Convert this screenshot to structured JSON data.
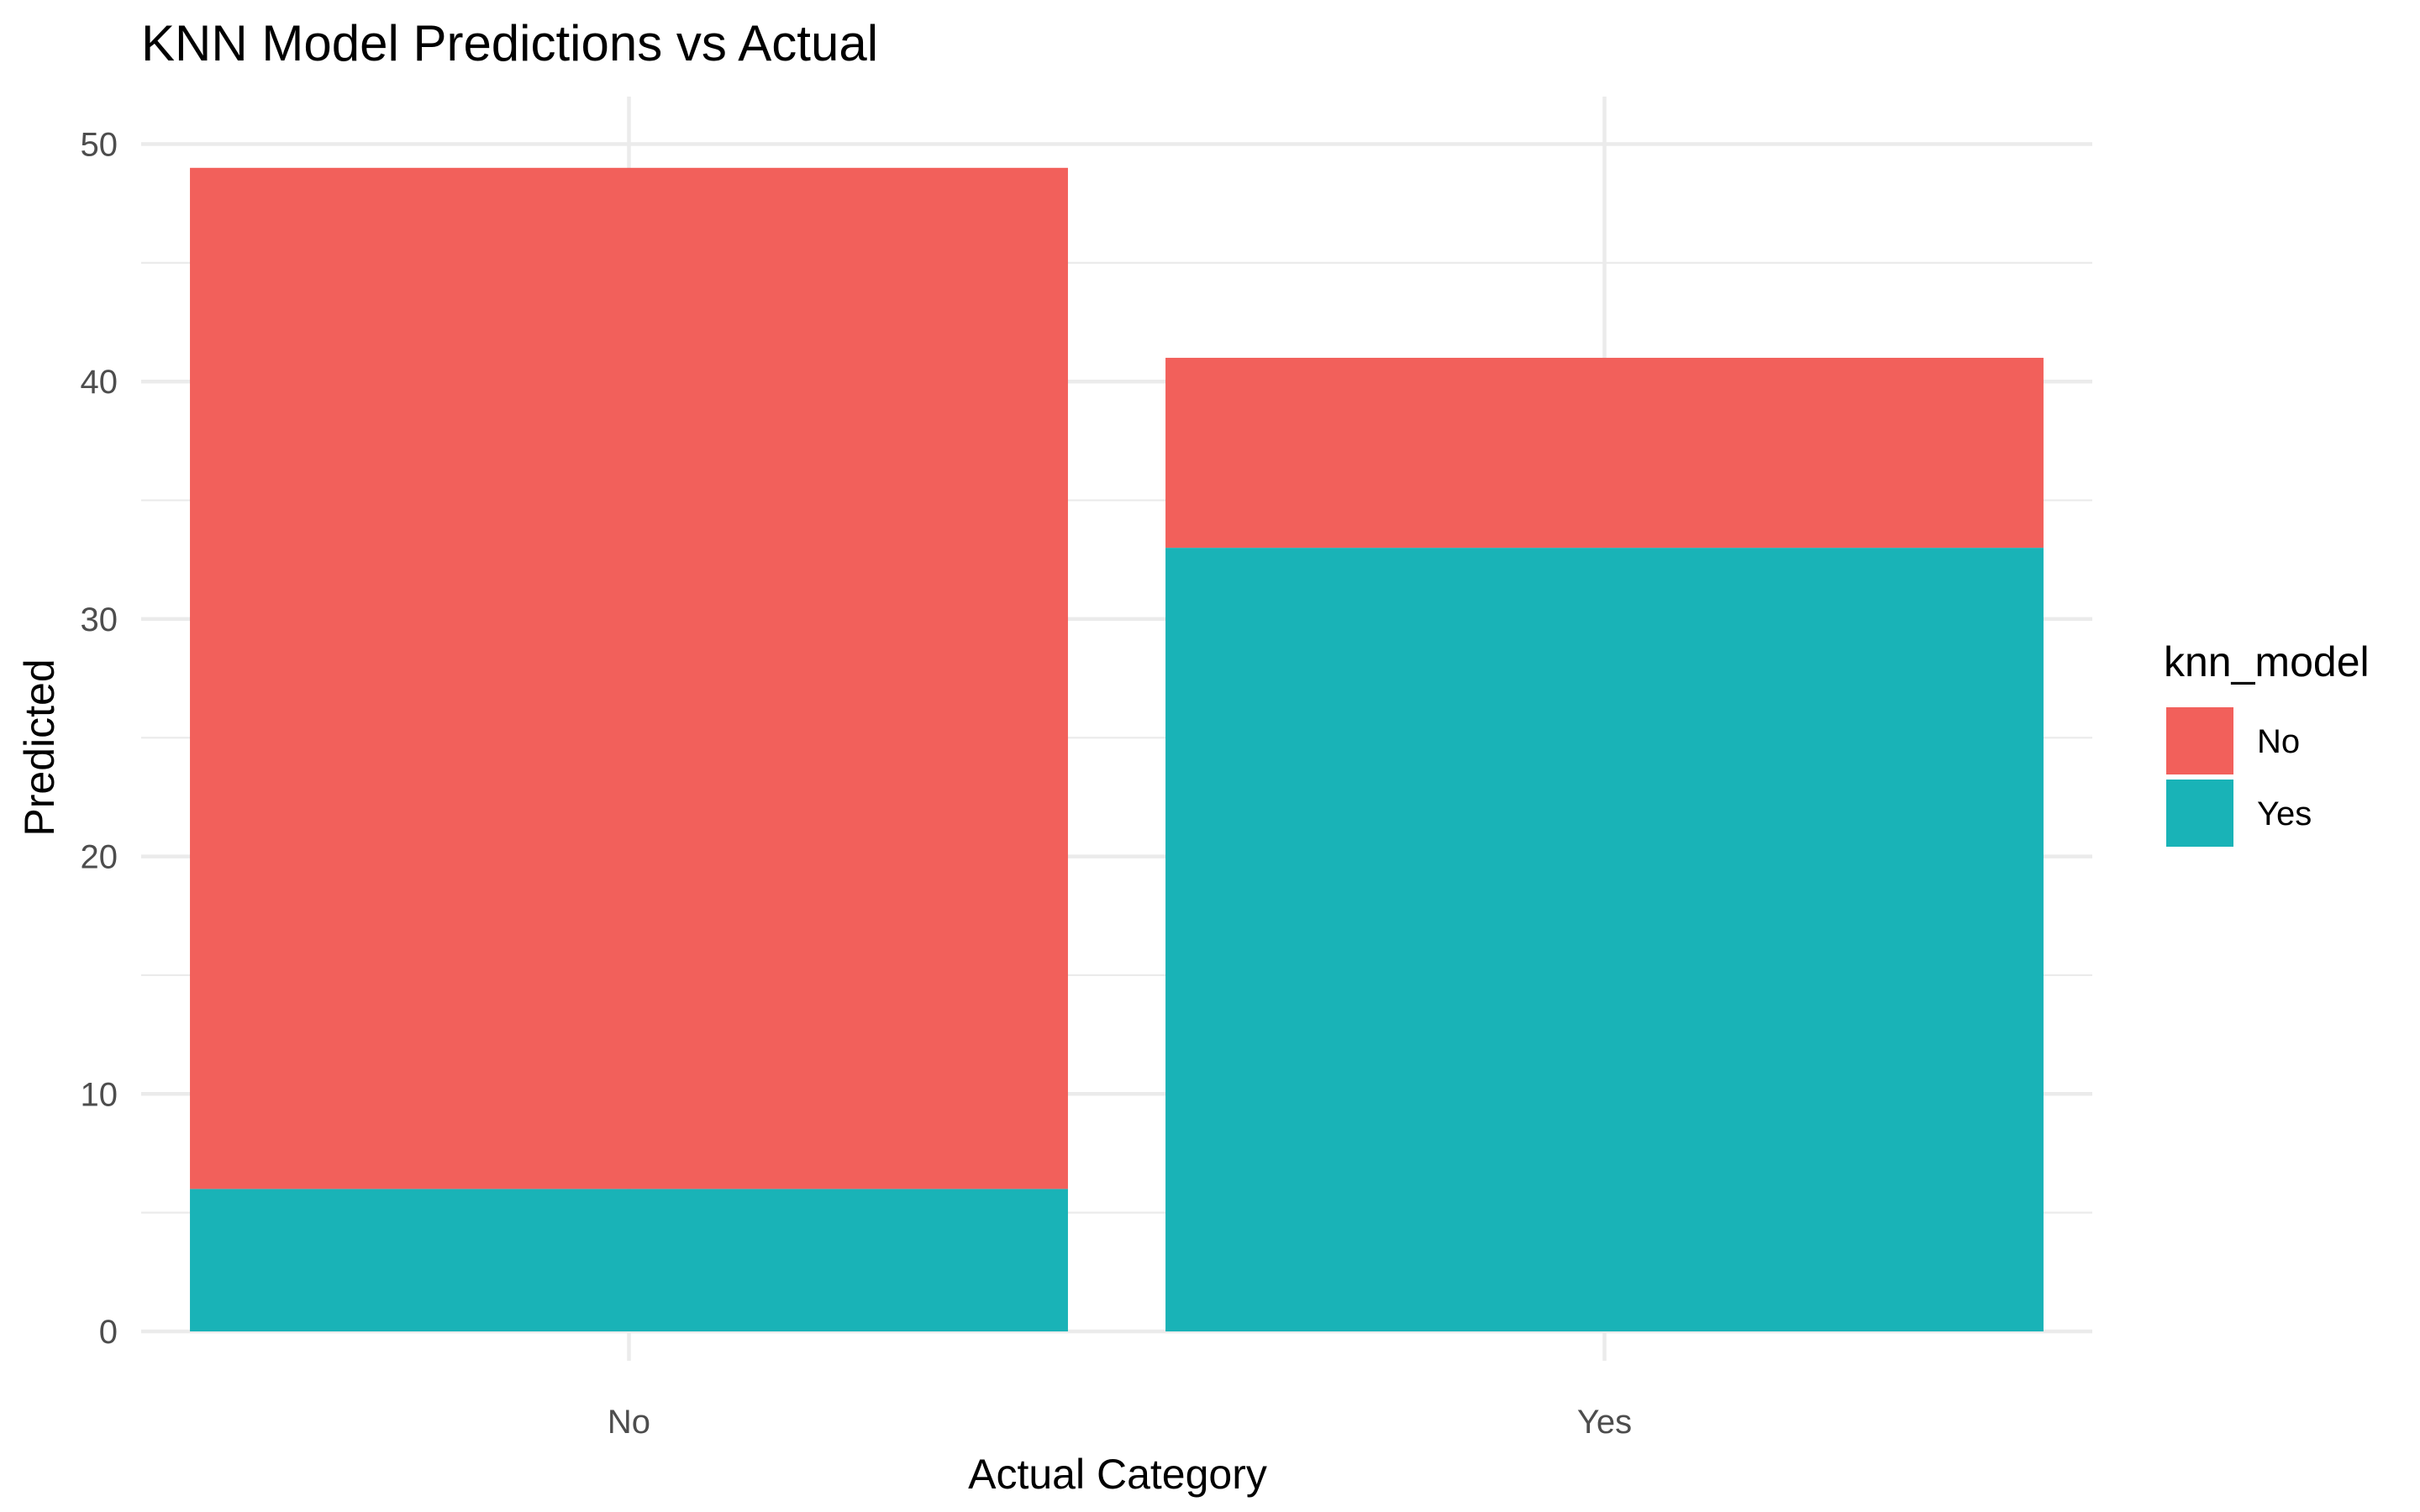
{
  "chart_data": {
    "type": "bar",
    "stacked": true,
    "title": "KNN Model Predictions vs Actual",
    "xlabel": "Actual Category",
    "ylabel": "Predicted",
    "categories": [
      "No",
      "Yes"
    ],
    "series": [
      {
        "name": "Yes",
        "values": [
          6,
          33
        ],
        "color": "#19B3B7"
      },
      {
        "name": "No",
        "values": [
          43,
          8
        ],
        "color": "#F2605B"
      }
    ],
    "ylim": [
      0,
      52
    ],
    "yticks": [
      "0",
      "10",
      "20",
      "30",
      "40",
      "50"
    ],
    "grid": true,
    "legend": {
      "title": "knn_model",
      "position": "right",
      "items": [
        {
          "label": "No",
          "color": "#F2605B"
        },
        {
          "label": "Yes",
          "color": "#19B3B7"
        }
      ]
    }
  }
}
